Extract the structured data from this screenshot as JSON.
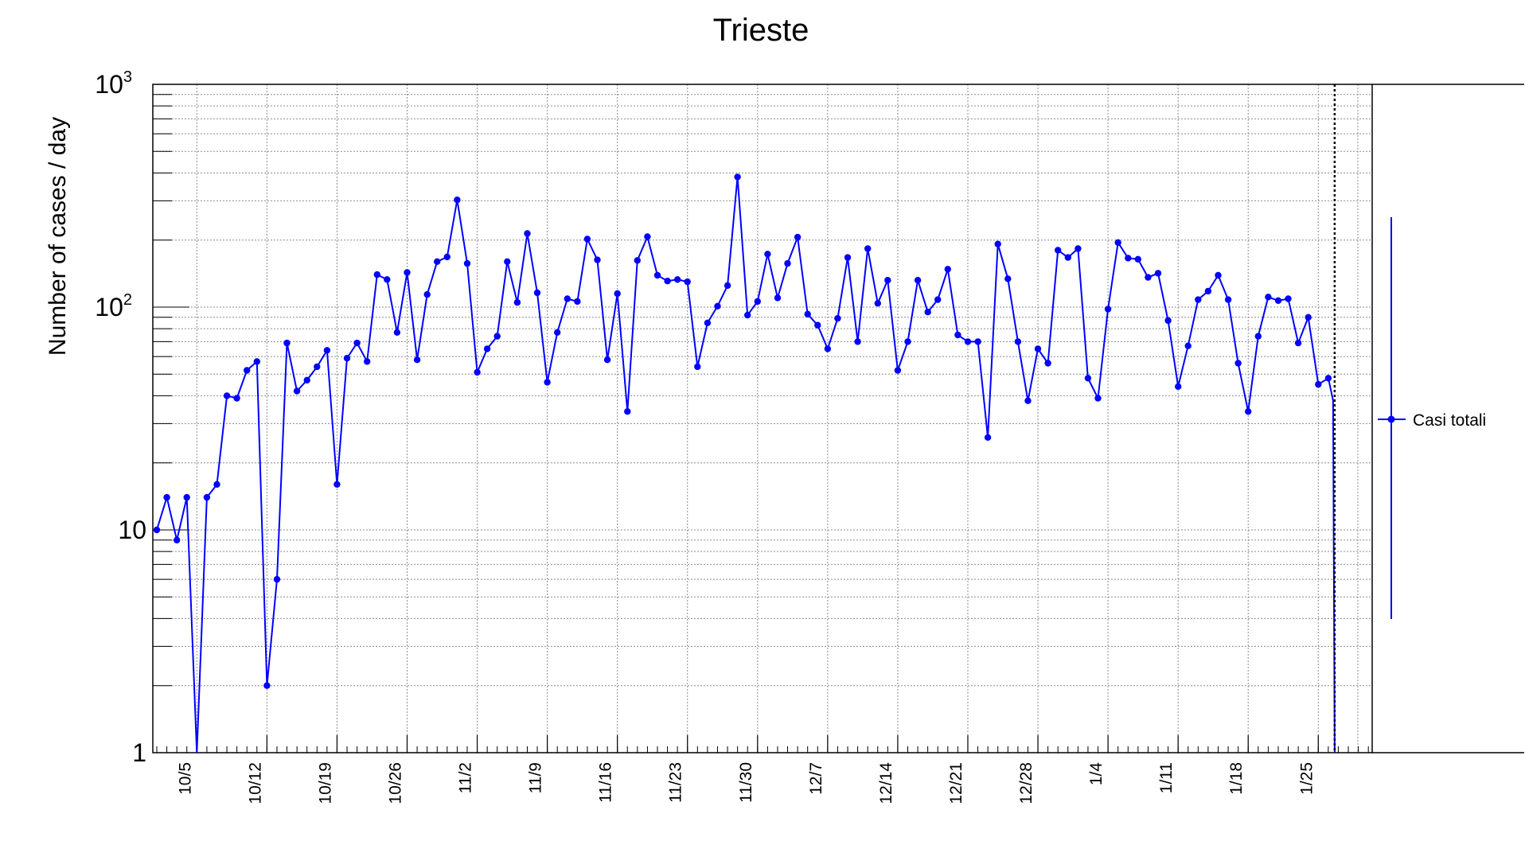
{
  "chart_data": {
    "type": "line",
    "title": "Trieste",
    "ylabel": "Number of cases / day",
    "xlabel": "",
    "yscale": "log",
    "ylim": [
      1,
      1000
    ],
    "grid": true,
    "legend_position": "right",
    "x_tick_labels": [
      "10/5",
      "10/12",
      "10/19",
      "10/26",
      "11/2",
      "11/9",
      "11/16",
      "11/23",
      "11/30",
      "12/7",
      "12/14",
      "12/21",
      "12/28",
      "1/4",
      "1/11",
      "1/18",
      "1/25"
    ],
    "y_tick_labels": [
      "1",
      "10",
      "10²",
      "10³"
    ],
    "series": [
      {
        "name": "Casi totali",
        "color": "#0000ff",
        "start_date": "2020-10-01",
        "values": [
          10,
          14,
          9,
          14,
          1,
          14,
          16,
          40,
          39,
          52,
          57,
          2,
          6,
          69,
          42,
          47,
          54,
          64,
          16,
          59,
          69,
          57,
          140,
          133,
          77,
          143,
          58,
          114,
          160,
          168,
          303,
          157,
          51,
          65,
          74,
          160,
          105,
          214,
          116,
          46,
          77,
          109,
          106,
          202,
          163,
          58,
          115,
          34,
          162,
          207,
          139,
          131,
          133,
          130,
          54,
          85,
          101,
          125,
          384,
          92,
          106,
          173,
          110,
          157,
          206,
          93,
          83,
          65,
          89,
          167,
          70,
          183,
          104,
          132,
          52,
          70,
          132,
          95,
          108,
          148,
          75,
          70,
          70,
          26,
          192,
          134,
          70,
          38,
          65,
          56,
          180,
          167,
          183,
          48,
          39,
          98,
          195,
          166,
          164,
          136,
          142,
          87,
          44,
          67,
          108,
          118,
          139,
          108,
          56,
          34,
          74,
          111,
          107,
          109,
          69,
          90,
          45,
          48
        ]
      }
    ]
  }
}
